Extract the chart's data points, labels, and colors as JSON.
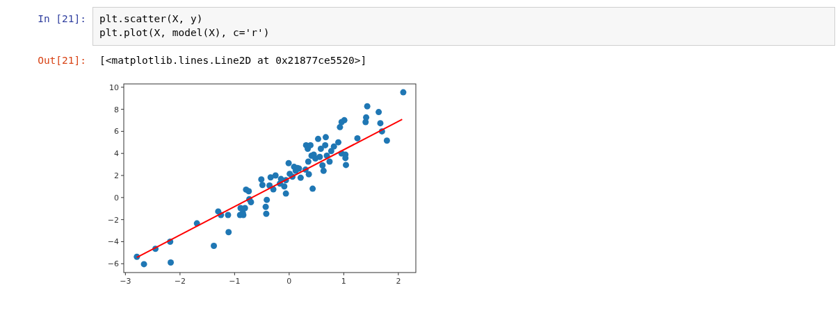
{
  "chart_data": {
    "type": "scatter",
    "annotations": [
      "In [21]:",
      "plt.scatter(X, y)",
      "plt.plot(X, model(X), c='r')",
      "Out[21]:",
      "[<matplotlib.lines.Line2D at 0x21877ce5520>]"
    ],
    "xlim": [
      -3.03,
      2.32
    ],
    "ylim": [
      -6.8,
      10.3
    ],
    "xticks": [
      -3,
      -2,
      -1,
      0,
      1,
      2
    ],
    "yticks": [
      -6,
      -4,
      -2,
      0,
      2,
      4,
      6,
      8,
      10
    ],
    "series": [
      {
        "marker": "circle",
        "color": "#1f77b4",
        "x": [
          -2.79,
          -2.66,
          -2.45,
          -2.18,
          -2.17,
          -1.69,
          -1.38,
          -1.3,
          -1.25,
          -1.12,
          -1.11,
          -0.9,
          -0.89,
          -0.85,
          -0.84,
          -0.81,
          -0.79,
          -0.74,
          -0.73,
          -0.7,
          -0.51,
          -0.49,
          -0.41,
          -0.43,
          -0.42,
          -0.36,
          -0.34,
          -0.29,
          -0.25,
          -0.17,
          -0.15,
          -0.09,
          -0.06,
          -0.06,
          -0.01,
          0.01,
          0.06,
          0.09,
          0.12,
          0.15,
          0.18,
          0.21,
          0.3,
          0.31,
          0.34,
          0.35,
          0.36,
          0.39,
          0.41,
          0.43,
          0.45,
          0.48,
          0.53,
          0.56,
          0.58,
          0.61,
          0.63,
          0.66,
          0.67,
          0.69,
          0.74,
          0.77,
          0.82,
          0.9,
          0.93,
          0.96,
          1.01,
          0.96,
          1.03,
          1.03,
          1.04,
          1.25,
          1.4,
          1.41,
          1.43,
          1.64,
          1.67,
          1.7,
          1.79,
          2.09
        ],
        "values": [
          -5.37,
          -6.04,
          -4.65,
          -4.0,
          -5.89,
          -2.34,
          -4.38,
          -1.26,
          -1.58,
          -1.58,
          -3.14,
          -1.58,
          -0.95,
          -1.37,
          -1.58,
          -0.95,
          0.72,
          0.57,
          -0.15,
          -0.42,
          1.64,
          1.14,
          -0.21,
          -0.84,
          -1.47,
          1.09,
          1.83,
          0.74,
          2.0,
          1.26,
          1.68,
          1.01,
          0.36,
          1.58,
          3.12,
          2.15,
          1.89,
          2.78,
          2.42,
          2.67,
          2.63,
          1.79,
          2.53,
          4.74,
          4.42,
          3.26,
          2.11,
          4.74,
          3.79,
          0.8,
          3.89,
          3.54,
          5.31,
          3.68,
          4.42,
          2.91,
          2.42,
          4.74,
          5.47,
          3.79,
          3.26,
          4.21,
          4.63,
          5.01,
          6.38,
          6.84,
          7.01,
          4.0,
          3.89,
          3.58,
          2.95,
          5.37,
          6.84,
          7.26,
          8.27,
          7.75,
          6.74,
          6.0,
          5.16,
          9.54
        ]
      },
      {
        "type": "line",
        "color": "#ff0000",
        "x": [
          -2.79,
          2.07
        ],
        "values": [
          -5.43,
          7.09
        ]
      }
    ]
  }
}
